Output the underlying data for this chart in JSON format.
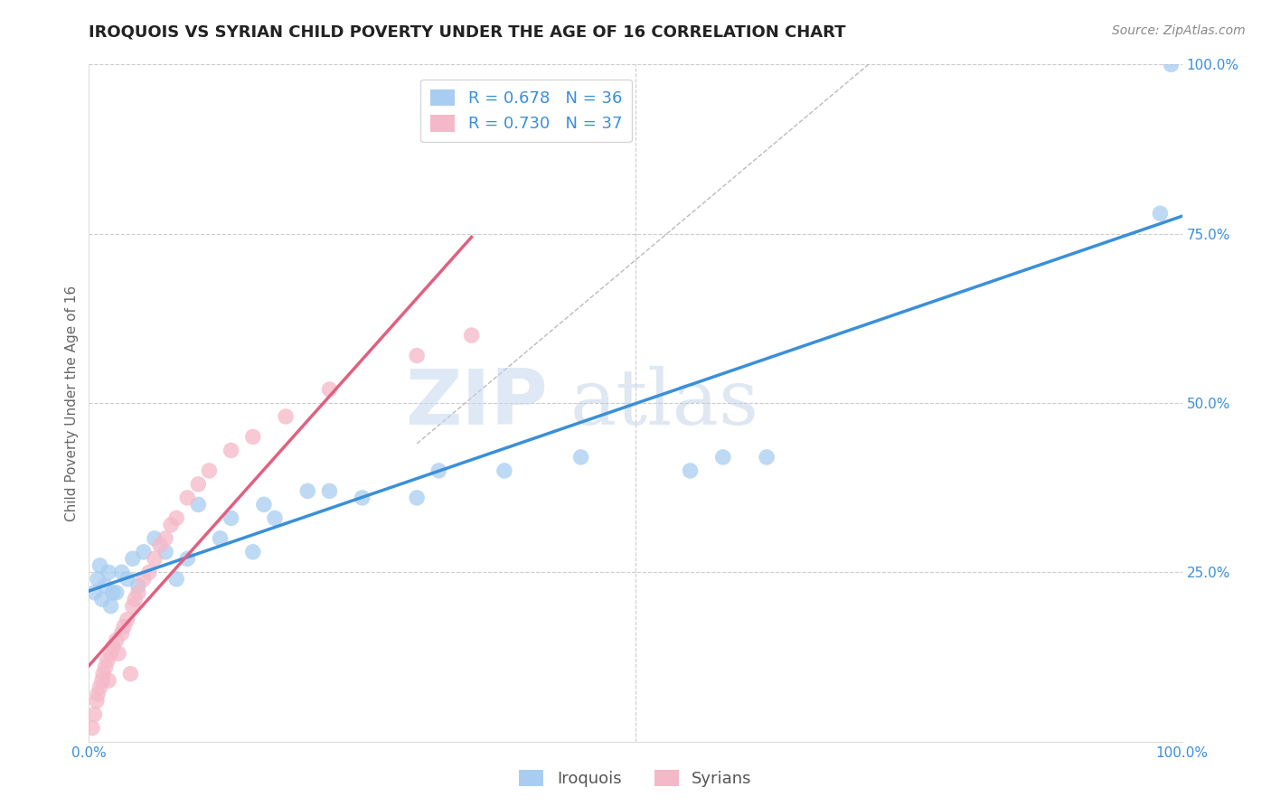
{
  "title": "IROQUOIS VS SYRIAN CHILD POVERTY UNDER THE AGE OF 16 CORRELATION CHART",
  "ylabel": "Child Poverty Under the Age of 16",
  "source_text": "Source: ZipAtlas.com",
  "watermark_zip": "ZIP",
  "watermark_atlas": "atlas",
  "xlim": [
    0,
    1
  ],
  "ylim": [
    0,
    1
  ],
  "xtick_labels": [
    "0.0%",
    "100.0%"
  ],
  "ytick_labels": [
    "25.0%",
    "50.0%",
    "75.0%",
    "100.0%"
  ],
  "ytick_positions": [
    0.25,
    0.5,
    0.75,
    1.0
  ],
  "iroquois_color": "#a8cdf0",
  "syrians_color": "#f5b8c8",
  "iroquois_line_color": "#3a8fd9",
  "syrians_line_color": "#e06080",
  "legend_R_iroquois": "R = 0.678",
  "legend_N_iroquois": "N = 36",
  "legend_R_syrians": "R = 0.730",
  "legend_N_syrians": "N = 37",
  "iroquois_scatter_x": [
    0.005,
    0.008,
    0.01,
    0.012,
    0.015,
    0.018,
    0.02,
    0.022,
    0.025,
    0.03,
    0.035,
    0.04,
    0.045,
    0.05,
    0.06,
    0.07,
    0.08,
    0.09,
    0.1,
    0.12,
    0.13,
    0.15,
    0.16,
    0.17,
    0.2,
    0.22,
    0.25,
    0.3,
    0.32,
    0.38,
    0.45,
    0.55,
    0.58,
    0.62,
    0.98,
    0.99
  ],
  "iroquois_scatter_y": [
    0.22,
    0.24,
    0.26,
    0.21,
    0.23,
    0.25,
    0.2,
    0.22,
    0.22,
    0.25,
    0.24,
    0.27,
    0.23,
    0.28,
    0.3,
    0.28,
    0.24,
    0.27,
    0.35,
    0.3,
    0.33,
    0.28,
    0.35,
    0.33,
    0.37,
    0.37,
    0.36,
    0.36,
    0.4,
    0.4,
    0.42,
    0.4,
    0.42,
    0.42,
    0.78,
    1.0
  ],
  "syrians_scatter_x": [
    0.003,
    0.005,
    0.007,
    0.008,
    0.01,
    0.012,
    0.013,
    0.015,
    0.017,
    0.018,
    0.02,
    0.022,
    0.025,
    0.027,
    0.03,
    0.032,
    0.035,
    0.038,
    0.04,
    0.042,
    0.045,
    0.05,
    0.055,
    0.06,
    0.065,
    0.07,
    0.075,
    0.08,
    0.09,
    0.1,
    0.11,
    0.13,
    0.15,
    0.18,
    0.22,
    0.3,
    0.35
  ],
  "syrians_scatter_y": [
    0.02,
    0.04,
    0.06,
    0.07,
    0.08,
    0.09,
    0.1,
    0.11,
    0.12,
    0.09,
    0.13,
    0.14,
    0.15,
    0.13,
    0.16,
    0.17,
    0.18,
    0.1,
    0.2,
    0.21,
    0.22,
    0.24,
    0.25,
    0.27,
    0.29,
    0.3,
    0.32,
    0.33,
    0.36,
    0.38,
    0.4,
    0.43,
    0.45,
    0.48,
    0.52,
    0.57,
    0.6
  ],
  "title_fontsize": 13,
  "label_fontsize": 11,
  "tick_fontsize": 11,
  "legend_fontsize": 13,
  "source_fontsize": 10,
  "background_color": "#ffffff",
  "grid_color": "#cccccc",
  "grid_linestyle": "--"
}
